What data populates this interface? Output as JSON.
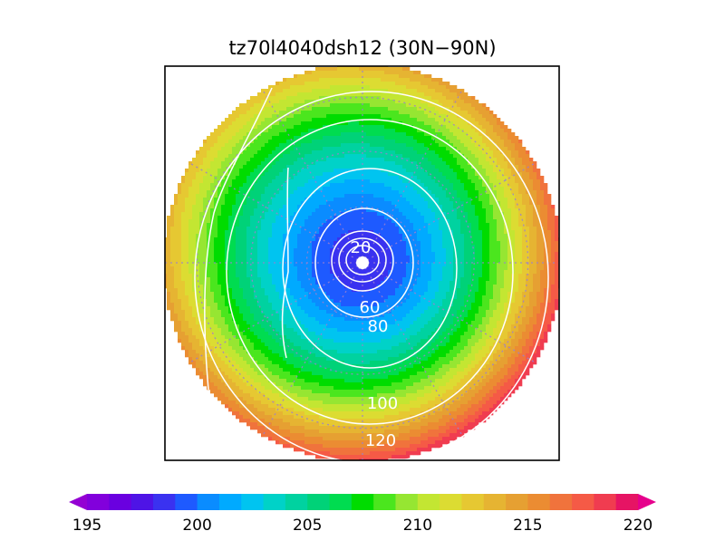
{
  "chart_data": {
    "type": "heatmap",
    "projection": "north polar stereographic",
    "title": "tz70l4040dsh12 (30N−90N)",
    "domain": "30N−90N",
    "shaded_field": {
      "colorbar_levels": [
        195,
        196,
        197,
        198,
        199,
        200,
        201,
        202,
        203,
        204,
        205,
        206,
        207,
        208,
        209,
        210,
        211,
        212,
        213,
        214,
        215,
        216,
        217,
        218,
        219,
        220
      ],
      "colorbar_tick_labels": [
        "195",
        "200",
        "205",
        "210",
        "215",
        "220"
      ],
      "colors": [
        "#9400d3",
        "#8200dc",
        "#6a00e0",
        "#4e14e6",
        "#3a32f0",
        "#1e5aff",
        "#0a8cff",
        "#00aaff",
        "#00c4f0",
        "#00d2c8",
        "#00d2a0",
        "#00d278",
        "#00dc50",
        "#00dc00",
        "#4be61e",
        "#96e632",
        "#c3e632",
        "#dcdc32",
        "#e6c832",
        "#e6b432",
        "#e6a032",
        "#eb8c32",
        "#f0733c",
        "#f55a46",
        "#f03c50",
        "#e61464",
        "#e6008c"
      ],
      "pole_value": 198,
      "edge_value_min": 213,
      "edge_value_max": 219
    },
    "contour_lines": {
      "color": "#ffffff",
      "labels": [
        "20",
        "60",
        "80",
        "100",
        "120"
      ]
    },
    "grid": true
  }
}
